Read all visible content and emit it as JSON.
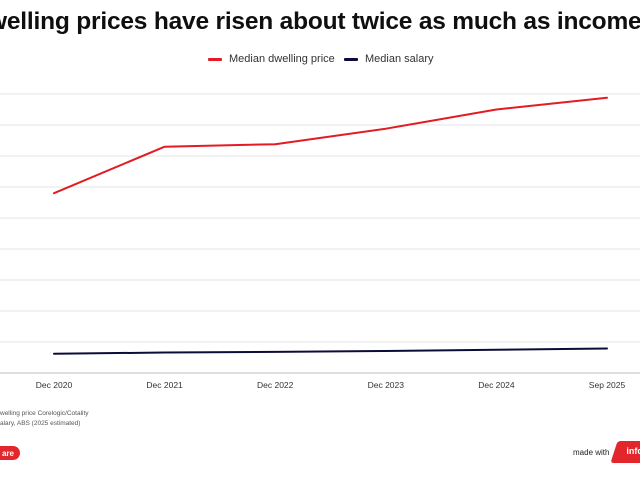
{
  "chart_data": {
    "type": "line",
    "title": "welling prices have risen about twice as much as income",
    "categories": [
      "Dec 2020",
      "Dec 2021",
      "Dec 2022",
      "Dec 2023",
      "Dec 2024",
      "Sep 2025"
    ],
    "series": [
      {
        "name": "Median dwelling price",
        "color": "#e31b23",
        "values": [
          580,
          730,
          738,
          788,
          850,
          888
        ]
      },
      {
        "name": "Median salary",
        "color": "#0c0c3a",
        "values": [
          62,
          66,
          68,
          71,
          75,
          79
        ]
      }
    ],
    "ylim": [
      0,
      900
    ],
    "gridlines": [
      0,
      100,
      200,
      300,
      400,
      500,
      600,
      700,
      800,
      900
    ],
    "grid": true,
    "legend": "top-center",
    "xlabel": "",
    "ylabel": ""
  },
  "legend": {
    "price_label": "Median dwelling price",
    "salary_label": "Median salary"
  },
  "source": {
    "line1": "welling price  Corelogic/Cotality",
    "line2": "alary, ABS (2025 estimated)"
  },
  "footer": {
    "share_label": "are",
    "made_with": "made with",
    "brand": "info"
  },
  "colors": {
    "accent": "#e3262b",
    "price_line": "#e31b23",
    "salary_line": "#0c0c3a",
    "grid": "#e6e6e6"
  }
}
